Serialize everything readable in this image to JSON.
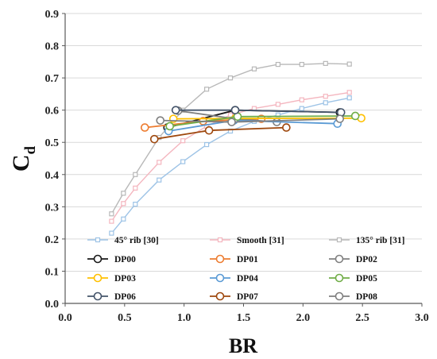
{
  "chart_data": {
    "type": "line",
    "xlabel": "BR",
    "ylabel_main": "C",
    "ylabel_sub": "d",
    "xlim": [
      0.0,
      3.0
    ],
    "ylim": [
      0.0,
      0.9
    ],
    "xticks": [
      "0.0",
      "0.5",
      "1.0",
      "1.5",
      "2.0",
      "2.5",
      "3.0"
    ],
    "yticks": [
      "0.0",
      "0.1",
      "0.2",
      "0.3",
      "0.4",
      "0.5",
      "0.6",
      "0.7",
      "0.8",
      "0.9"
    ],
    "legend_position": "bottom-inside",
    "series": [
      {
        "name": "45° rib [30]",
        "color": "#9dc3e6",
        "marker": "square",
        "x": [
          0.39,
          0.49,
          0.59,
          0.79,
          0.99,
          1.19,
          1.39,
          1.59,
          1.79,
          1.99,
          2.19,
          2.39
        ],
        "y": [
          0.218,
          0.262,
          0.308,
          0.383,
          0.44,
          0.493,
          0.535,
          0.565,
          0.585,
          0.605,
          0.623,
          0.638
        ]
      },
      {
        "name": "Smooth [31]",
        "color": "#f4b6bf",
        "marker": "square",
        "x": [
          0.39,
          0.49,
          0.59,
          0.79,
          0.99,
          1.19,
          1.39,
          1.59,
          1.79,
          1.99,
          2.19,
          2.39
        ],
        "y": [
          0.255,
          0.31,
          0.358,
          0.438,
          0.505,
          0.55,
          0.585,
          0.605,
          0.618,
          0.632,
          0.643,
          0.655
        ]
      },
      {
        "name": "135° rib [31]",
        "color": "#b8b8b8",
        "marker": "square",
        "x": [
          0.39,
          0.49,
          0.59,
          0.79,
          0.99,
          1.19,
          1.39,
          1.59,
          1.79,
          1.99,
          2.19,
          2.39
        ],
        "y": [
          0.278,
          0.342,
          0.4,
          0.515,
          0.6,
          0.665,
          0.7,
          0.728,
          0.742,
          0.742,
          0.745,
          0.743
        ]
      },
      {
        "name": "DP00",
        "color": "#1a1a1a",
        "marker": "circle",
        "x": [
          0.86,
          1.43,
          2.31
        ],
        "y": [
          0.546,
          0.6,
          0.593
        ]
      },
      {
        "name": "DP01",
        "color": "#ed7d31",
        "marker": "circle",
        "x": [
          0.67,
          1.16,
          1.65
        ],
        "y": [
          0.546,
          0.566,
          0.573
        ]
      },
      {
        "name": "DP02",
        "color": "#808080",
        "marker": "circle",
        "x": [
          0.95,
          1.43,
          1.78
        ],
        "y": [
          0.598,
          0.573,
          0.563
        ]
      },
      {
        "name": "DP03",
        "color": "#ffc000",
        "marker": "circle",
        "x": [
          0.91,
          1.43,
          2.49
        ],
        "y": [
          0.573,
          0.574,
          0.575
        ]
      },
      {
        "name": "DP04",
        "color": "#5b9bd5",
        "marker": "circle",
        "x": [
          0.87,
          1.42,
          2.29
        ],
        "y": [
          0.535,
          0.568,
          0.558
        ]
      },
      {
        "name": "DP05",
        "color": "#70ad47",
        "marker": "circle",
        "x": [
          0.88,
          1.45,
          2.44
        ],
        "y": [
          0.55,
          0.58,
          0.582
        ]
      },
      {
        "name": "DP06",
        "color": "#44546a",
        "marker": "circle",
        "x": [
          0.93,
          1.43,
          2.32
        ],
        "y": [
          0.6,
          0.6,
          0.593
        ]
      },
      {
        "name": "DP07",
        "color": "#9e480e",
        "marker": "circle",
        "x": [
          0.75,
          1.21,
          1.86
        ],
        "y": [
          0.51,
          0.537,
          0.546
        ]
      },
      {
        "name": "DP08",
        "color": "#7f7f7f",
        "marker": "circle",
        "x": [
          0.8,
          1.4,
          2.31
        ],
        "y": [
          0.568,
          0.563,
          0.573
        ]
      }
    ]
  }
}
